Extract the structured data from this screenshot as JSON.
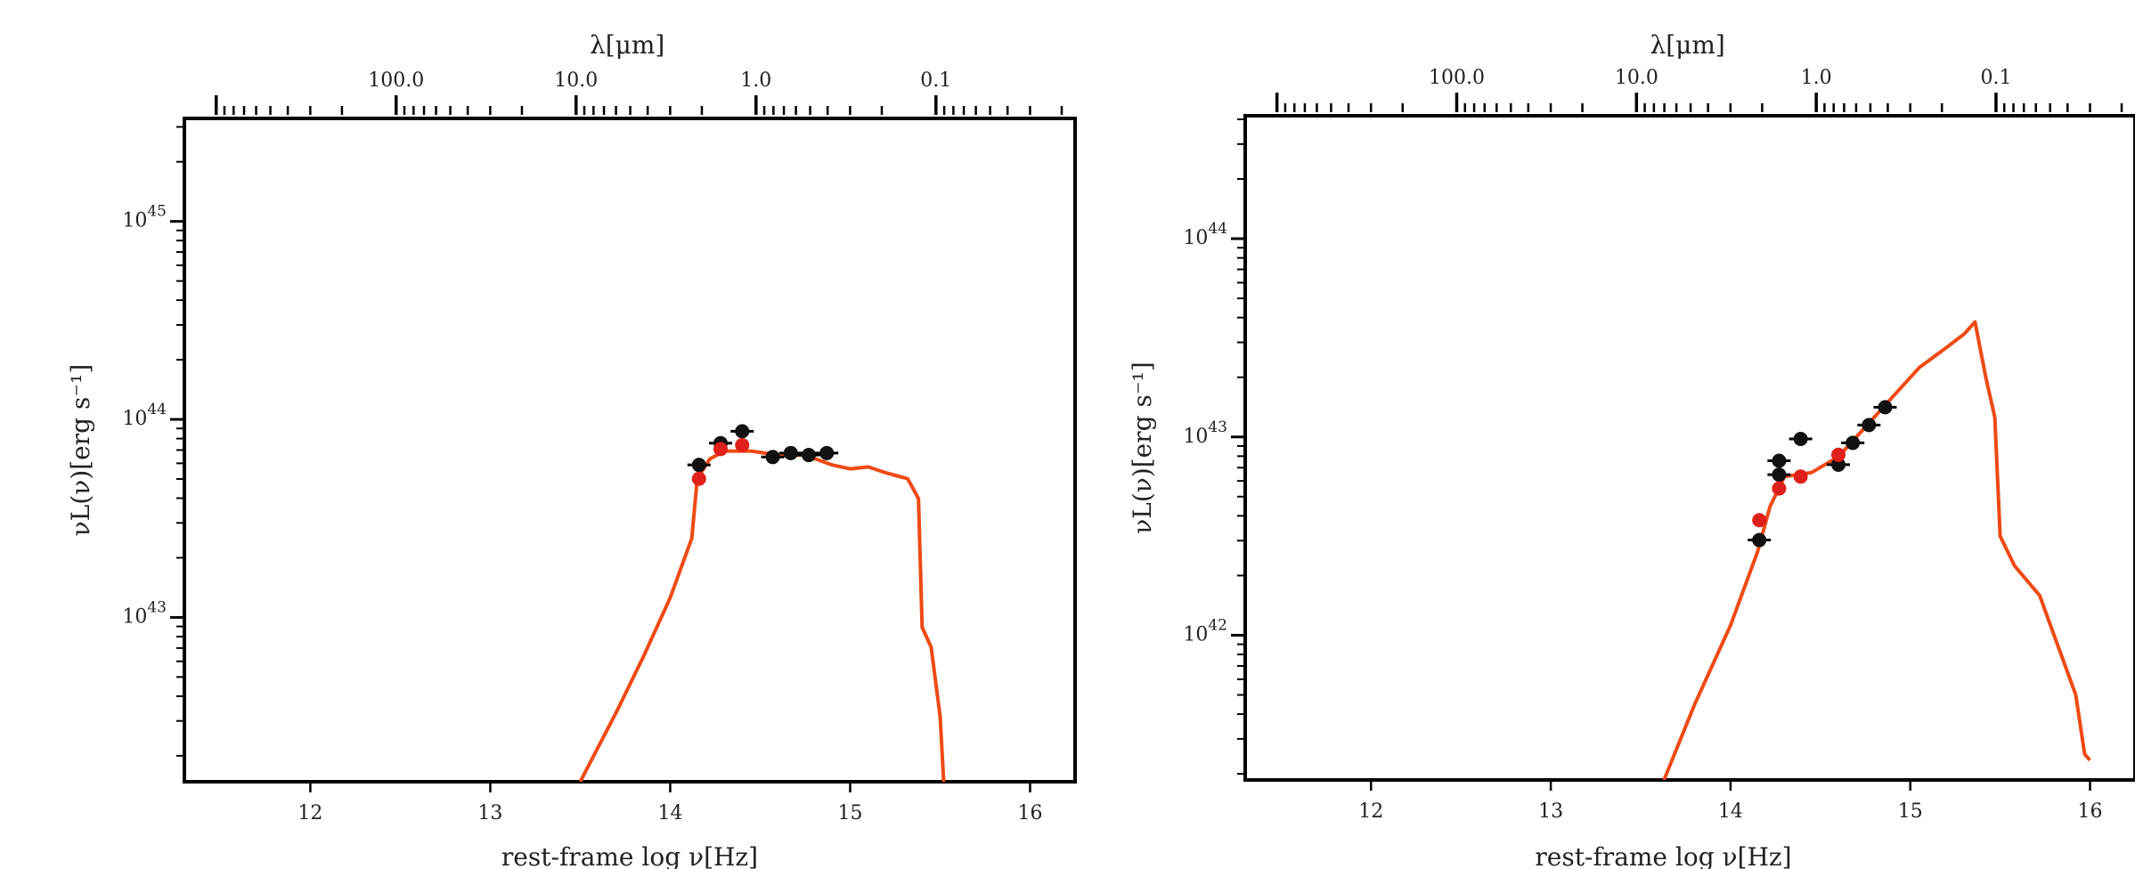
{
  "chart_data": [
    {
      "type": "line",
      "xlabel": "rest-frame log ν[Hz]",
      "ylabel": "νL(ν)[erg s⁻¹]",
      "top_axis_label": "λ[μm]",
      "xlim": [
        11.3,
        16.25
      ],
      "ylim_log10": [
        42.17,
        45.52
      ],
      "x_ticks": [
        "12",
        "13",
        "14",
        "15",
        "16"
      ],
      "y_ticks": [
        {
          "base": "10",
          "exp": "43",
          "log": 43
        },
        {
          "base": "10",
          "exp": "44",
          "log": 44
        },
        {
          "base": "10",
          "exp": "45",
          "log": 45
        }
      ],
      "top_ticks": [
        "100.0",
        "10.0",
        "1.0",
        "0.1"
      ],
      "grid": false,
      "model_color": "#ef4a14",
      "model_log10": [
        [
          13.5,
          42.17
        ],
        [
          13.7,
          42.52
        ],
        [
          13.85,
          42.8
        ],
        [
          14.0,
          43.1
        ],
        [
          14.12,
          43.4
        ],
        [
          14.15,
          43.7
        ],
        [
          14.22,
          43.8
        ],
        [
          14.3,
          43.84
        ],
        [
          14.45,
          43.84
        ],
        [
          14.6,
          43.82
        ],
        [
          14.75,
          43.82
        ],
        [
          14.9,
          43.77
        ],
        [
          15.0,
          43.75
        ],
        [
          15.1,
          43.76
        ],
        [
          15.2,
          43.73
        ],
        [
          15.32,
          43.7
        ],
        [
          15.38,
          43.6
        ],
        [
          15.4,
          42.95
        ],
        [
          15.45,
          42.85
        ],
        [
          15.5,
          42.5
        ],
        [
          15.52,
          42.17
        ]
      ],
      "observed": {
        "color": "#111111",
        "x": [
          14.16,
          14.28,
          14.4,
          14.57,
          14.67,
          14.77,
          14.87
        ],
        "log10": [
          43.77,
          43.88,
          43.94,
          43.81,
          43.83,
          43.82,
          43.83
        ]
      },
      "model_points": {
        "color": "#e0201a",
        "x": [
          14.16,
          14.28,
          14.4
        ],
        "log10": [
          43.7,
          43.85,
          43.87
        ]
      }
    },
    {
      "type": "line",
      "xlabel": "rest-frame log ν[Hz]",
      "ylabel": "νL(ν)[erg s⁻¹]",
      "top_axis_label": "λ[μm]",
      "xlim": [
        11.3,
        16.25
      ],
      "ylim_log10": [
        41.27,
        44.62
      ],
      "x_ticks": [
        "12",
        "13",
        "14",
        "15",
        "16"
      ],
      "y_ticks": [
        {
          "base": "10",
          "exp": "42",
          "log": 42
        },
        {
          "base": "10",
          "exp": "43",
          "log": 43
        },
        {
          "base": "10",
          "exp": "44",
          "log": 44
        }
      ],
      "top_ticks": [
        "100.0",
        "10.0",
        "1.0",
        "0.1"
      ],
      "grid": false,
      "model_color": "#ef4a14",
      "model_log10": [
        [
          13.63,
          41.27
        ],
        [
          13.8,
          41.65
        ],
        [
          14.0,
          42.05
        ],
        [
          14.15,
          42.42
        ],
        [
          14.22,
          42.65
        ],
        [
          14.3,
          42.8
        ],
        [
          14.45,
          42.82
        ],
        [
          14.6,
          42.9
        ],
        [
          14.75,
          43.05
        ],
        [
          14.9,
          43.2
        ],
        [
          15.05,
          43.35
        ],
        [
          15.2,
          43.45
        ],
        [
          15.3,
          43.52
        ],
        [
          15.36,
          43.58
        ],
        [
          15.42,
          43.3
        ],
        [
          15.47,
          43.1
        ],
        [
          15.5,
          42.5
        ],
        [
          15.58,
          42.35
        ],
        [
          15.72,
          42.2
        ],
        [
          15.82,
          41.95
        ],
        [
          15.92,
          41.7
        ],
        [
          15.97,
          41.4
        ],
        [
          16.0,
          41.37
        ]
      ],
      "observed": {
        "color": "#111111",
        "x": [
          14.16,
          14.27,
          14.27,
          14.39,
          14.6,
          14.68,
          14.77,
          14.86
        ],
        "log10": [
          42.48,
          42.88,
          42.81,
          42.99,
          42.86,
          42.97,
          43.06,
          43.15
        ]
      },
      "model_points": {
        "color": "#e0201a",
        "x": [
          14.16,
          14.27,
          14.39,
          14.6
        ],
        "log10": [
          42.58,
          42.74,
          42.8,
          42.91
        ]
      }
    }
  ]
}
